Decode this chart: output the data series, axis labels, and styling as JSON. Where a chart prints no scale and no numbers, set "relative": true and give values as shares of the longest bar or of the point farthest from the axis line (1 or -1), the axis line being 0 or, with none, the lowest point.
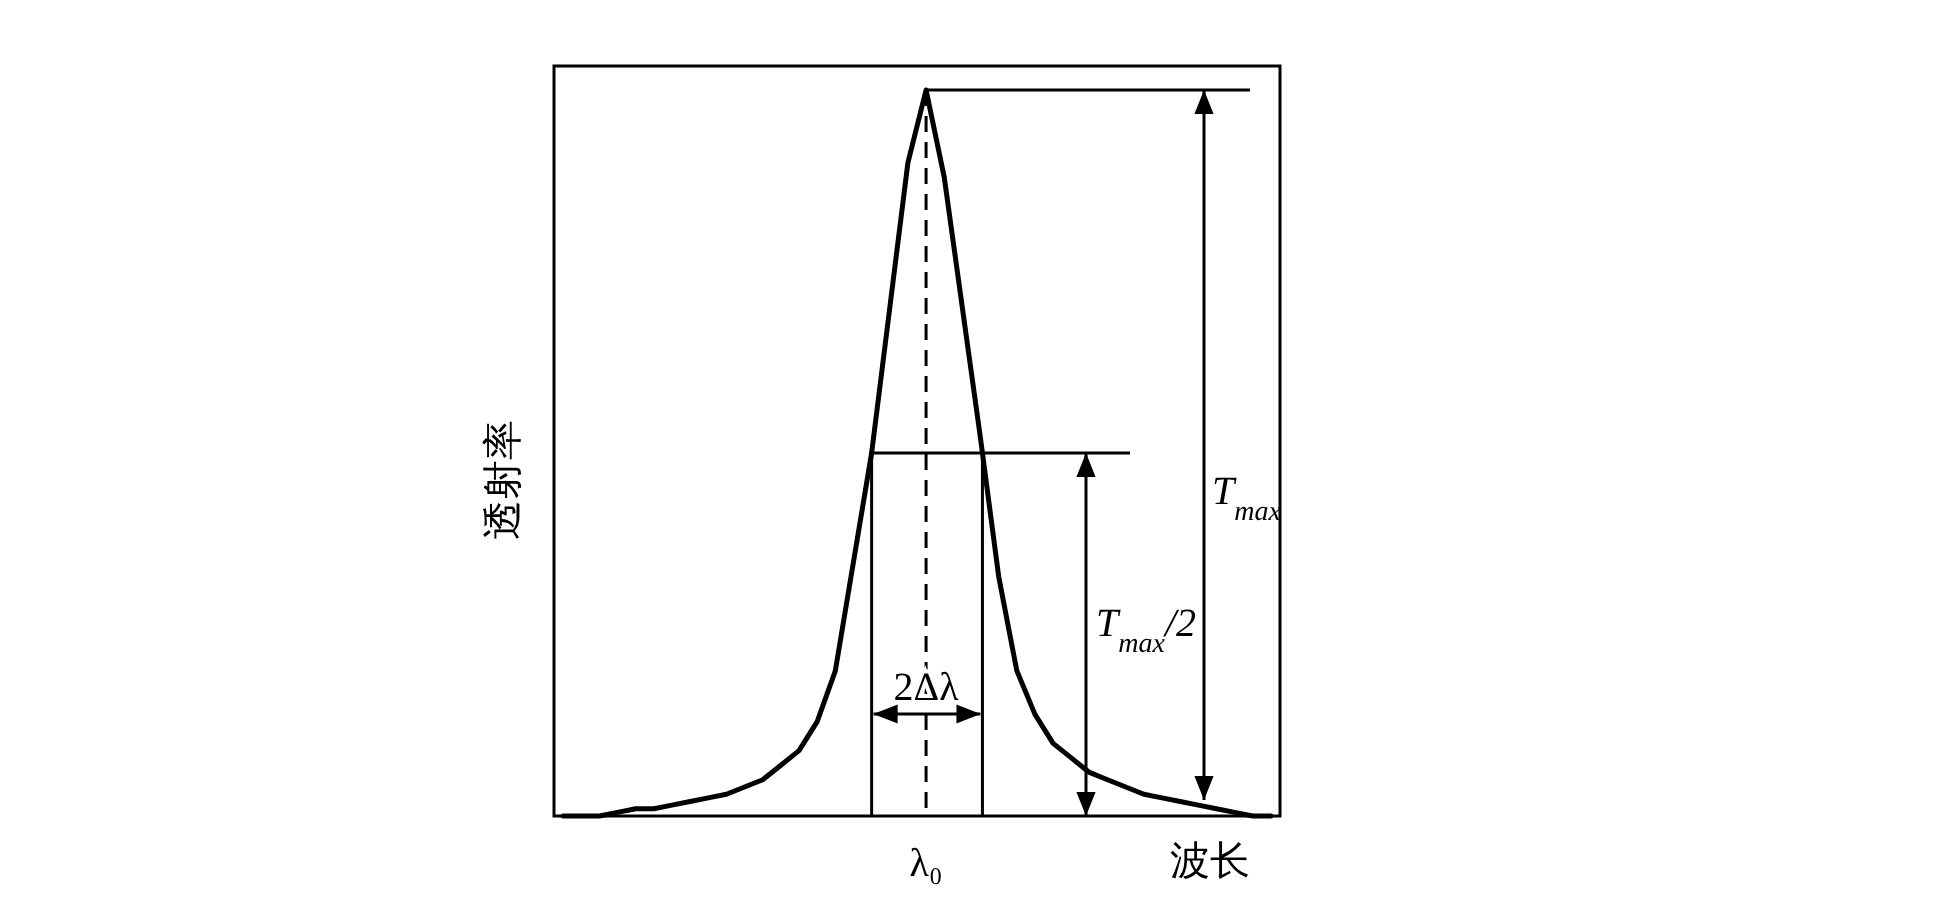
{
  "chart_data": {
    "type": "line",
    "relative": true,
    "xlabel": "波长",
    "ylabel": "透射率",
    "categories": [
      null,
      null,
      null,
      null,
      null,
      null,
      null,
      null,
      null,
      null,
      null,
      null,
      null,
      null,
      null,
      null,
      null,
      null,
      null,
      null,
      null,
      null,
      null,
      null,
      null,
      null,
      null,
      null,
      null,
      null,
      null,
      null,
      null,
      null,
      null,
      null,
      null,
      null,
      null,
      null
    ],
    "series": [
      {
        "color": "#000000",
        "values": [
          0,
          0,
          0,
          0.005,
          0.01,
          0.01,
          0.015,
          0.02,
          0.025,
          0.03,
          0.04,
          0.05,
          0.07,
          0.09,
          0.13,
          0.2,
          0.35,
          0.5,
          0.7,
          0.9,
          1.0,
          0.88,
          0.7,
          0.52,
          0.33,
          0.2,
          0.14,
          0.1,
          0.08,
          0.06,
          0.05,
          0.04,
          0.03,
          0.025,
          0.02,
          0.015,
          0.01,
          0.005,
          0,
          0
        ]
      }
    ],
    "annotations": [
      "λ₀",
      "2Δλ",
      "T$_{max}$",
      "T$_{max}$/2"
    ]
  }
}
